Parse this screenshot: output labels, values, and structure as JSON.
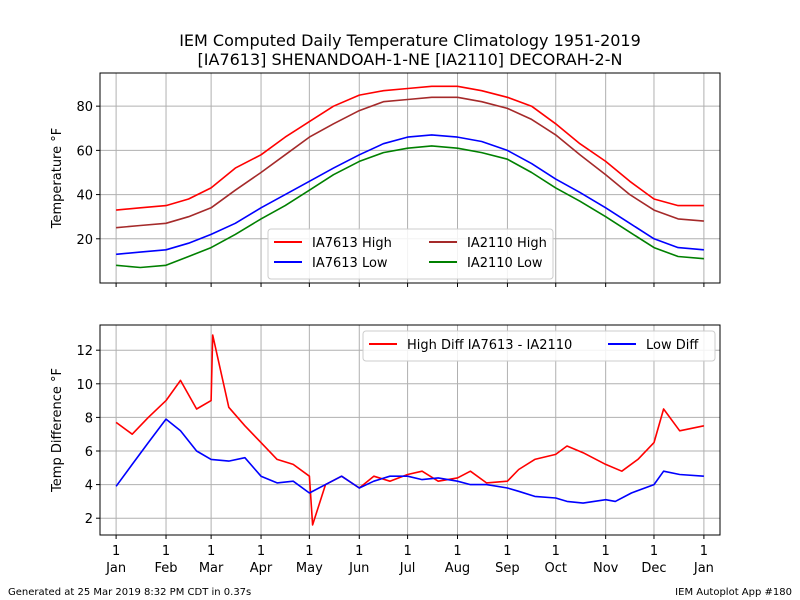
{
  "title_line1": "IEM Computed Daily Temperature Climatology 1951-2019",
  "title_line2": "[IA7613] SHENANDOAH-1-NE  [IA2110] DECORAH-2-N",
  "footer_left": "Generated at 25 Mar 2019 8:32 PM CDT in 0.37s",
  "footer_right": "IEM Autoplot App #180",
  "colors": {
    "high_a": "#ff0000",
    "low_a": "#0000ff",
    "high_b": "#a52a2a",
    "low_b": "#008000",
    "grid": "#b0b0b0"
  },
  "chart_data": [
    {
      "type": "line",
      "ylabel": "Temperature  °F",
      "ylim": [
        0,
        95
      ],
      "yticks": [
        20,
        40,
        60,
        80
      ],
      "xlim": [
        -10,
        375
      ],
      "grid": true,
      "legend": {
        "location": "lower-center",
        "columns": 2,
        "entries": [
          "IA7613 High",
          "IA7613 Low",
          "IA2110 High",
          "IA2110 Low"
        ]
      },
      "x_unit": "day of year",
      "series": [
        {
          "name": "IA7613 High",
          "color_key": "high_a",
          "x": [
            0,
            15,
            31,
            45,
            59,
            74,
            90,
            105,
            120,
            135,
            151,
            166,
            181,
            196,
            212,
            227,
            243,
            258,
            273,
            288,
            304,
            319,
            334,
            349,
            365
          ],
          "values": [
            33,
            34,
            35,
            38,
            43,
            52,
            58,
            66,
            73,
            80,
            85,
            87,
            88,
            89,
            89,
            87,
            84,
            80,
            72,
            63,
            55,
            46,
            38,
            35,
            35
          ]
        },
        {
          "name": "IA7613 Low",
          "color_key": "low_a",
          "x": [
            0,
            15,
            31,
            45,
            59,
            74,
            90,
            105,
            120,
            135,
            151,
            166,
            181,
            196,
            212,
            227,
            243,
            258,
            273,
            288,
            304,
            319,
            334,
            349,
            365
          ],
          "values": [
            13,
            14,
            15,
            18,
            22,
            27,
            34,
            40,
            46,
            52,
            58,
            63,
            66,
            67,
            66,
            64,
            60,
            54,
            47,
            41,
            34,
            27,
            20,
            16,
            15
          ]
        },
        {
          "name": "IA2110 High",
          "color_key": "high_b",
          "x": [
            0,
            15,
            31,
            45,
            59,
            74,
            90,
            105,
            120,
            135,
            151,
            166,
            181,
            196,
            212,
            227,
            243,
            258,
            273,
            288,
            304,
            319,
            334,
            349,
            365
          ],
          "values": [
            25,
            26,
            27,
            30,
            34,
            42,
            50,
            58,
            66,
            72,
            78,
            82,
            83,
            84,
            84,
            82,
            79,
            74,
            67,
            58,
            49,
            40,
            33,
            29,
            28
          ]
        },
        {
          "name": "IA2110 Low",
          "color_key": "low_b",
          "x": [
            0,
            15,
            31,
            45,
            59,
            74,
            90,
            105,
            120,
            135,
            151,
            166,
            181,
            196,
            212,
            227,
            243,
            258,
            273,
            288,
            304,
            319,
            334,
            349,
            365
          ],
          "values": [
            8,
            7,
            8,
            12,
            16,
            22,
            29,
            35,
            42,
            49,
            55,
            59,
            61,
            62,
            61,
            59,
            56,
            50,
            43,
            37,
            30,
            23,
            16,
            12,
            11
          ]
        }
      ]
    },
    {
      "type": "line",
      "ylabel": "Temp Difference  °F",
      "ylim": [
        1,
        13.5
      ],
      "yticks": [
        2,
        4,
        6,
        8,
        10,
        12
      ],
      "xlim": [
        -10,
        375
      ],
      "grid": true,
      "legend": {
        "location": "upper-right",
        "columns": 2,
        "entries": [
          "High Diff IA7613 - IA2110",
          "Low Diff"
        ]
      },
      "xticks": [
        {
          "x": 0,
          "day": "1",
          "month": "Jan"
        },
        {
          "x": 31,
          "day": "1",
          "month": "Feb"
        },
        {
          "x": 59,
          "day": "1",
          "month": "Mar"
        },
        {
          "x": 90,
          "day": "1",
          "month": "Apr"
        },
        {
          "x": 120,
          "day": "1",
          "month": "May"
        },
        {
          "x": 151,
          "day": "1",
          "month": "Jun"
        },
        {
          "x": 181,
          "day": "1",
          "month": "Jul"
        },
        {
          "x": 212,
          "day": "1",
          "month": "Aug"
        },
        {
          "x": 243,
          "day": "1",
          "month": "Sep"
        },
        {
          "x": 273,
          "day": "1",
          "month": "Oct"
        },
        {
          "x": 304,
          "day": "1",
          "month": "Nov"
        },
        {
          "x": 334,
          "day": "1",
          "month": "Dec"
        },
        {
          "x": 365,
          "day": "1",
          "month": "Jan"
        }
      ],
      "series": [
        {
          "name": "High Diff IA7613 - IA2110",
          "color_key": "high_a",
          "x": [
            0,
            10,
            20,
            31,
            40,
            50,
            59,
            60,
            70,
            80,
            90,
            100,
            110,
            120,
            122,
            130,
            140,
            151,
            160,
            170,
            181,
            190,
            200,
            212,
            220,
            230,
            243,
            250,
            260,
            273,
            280,
            290,
            304,
            314,
            324,
            334,
            340,
            350,
            365
          ],
          "values": [
            7.7,
            7.0,
            8.0,
            9.0,
            10.2,
            8.5,
            9.0,
            12.9,
            8.6,
            7.5,
            6.5,
            5.5,
            5.2,
            4.5,
            1.6,
            4.0,
            4.5,
            3.8,
            4.5,
            4.2,
            4.6,
            4.8,
            4.2,
            4.4,
            4.8,
            4.1,
            4.2,
            4.9,
            5.5,
            5.8,
            6.3,
            5.9,
            5.2,
            4.8,
            5.5,
            6.5,
            8.5,
            7.2,
            7.5
          ]
        },
        {
          "name": "Low Diff",
          "color_key": "low_a",
          "x": [
            0,
            10,
            20,
            31,
            40,
            50,
            59,
            70,
            80,
            90,
            100,
            110,
            120,
            130,
            140,
            151,
            160,
            170,
            181,
            190,
            200,
            212,
            220,
            230,
            243,
            250,
            260,
            273,
            280,
            290,
            304,
            310,
            320,
            334,
            340,
            350,
            365
          ],
          "values": [
            3.9,
            5.2,
            6.5,
            7.9,
            7.2,
            6.0,
            5.5,
            5.4,
            5.6,
            4.5,
            4.1,
            4.2,
            3.5,
            4.0,
            4.5,
            3.8,
            4.2,
            4.5,
            4.5,
            4.3,
            4.4,
            4.2,
            4.0,
            4.0,
            3.8,
            3.6,
            3.3,
            3.2,
            3.0,
            2.9,
            3.1,
            3.0,
            3.5,
            4.0,
            4.8,
            4.6,
            4.5
          ]
        }
      ]
    }
  ]
}
